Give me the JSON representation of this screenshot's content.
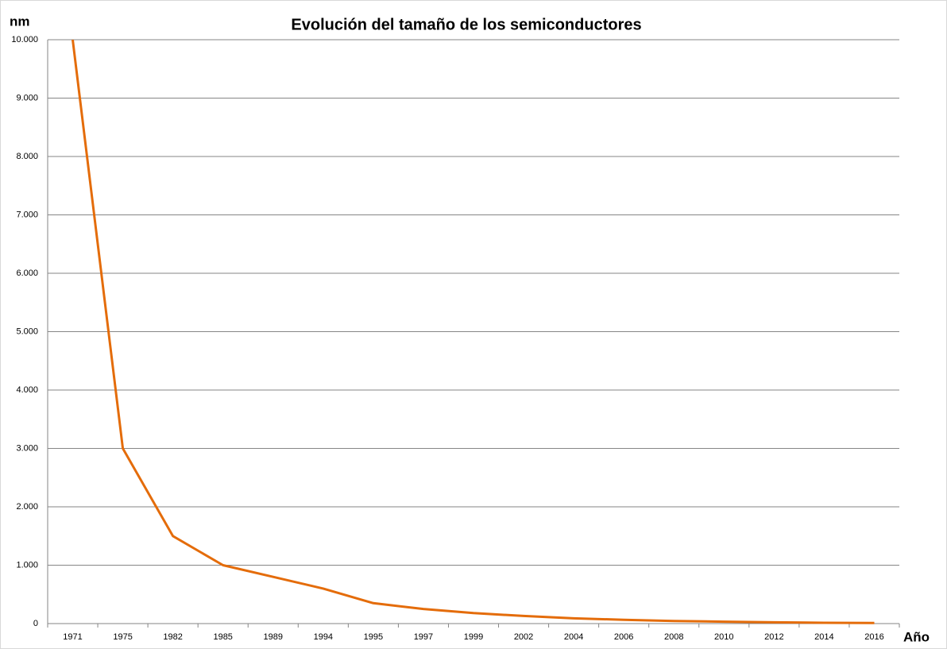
{
  "chart_data": {
    "type": "line",
    "title": "Evolución del tamaño de los semiconductores",
    "y_label": "nm",
    "x_label": "Año",
    "categories": [
      "1971",
      "1975",
      "1982",
      "1985",
      "1989",
      "1994",
      "1995",
      "1997",
      "1999",
      "2002",
      "2004",
      "2006",
      "2008",
      "2010",
      "2012",
      "2014",
      "2016"
    ],
    "series": [
      {
        "name": "nm",
        "color": "#e46c0a",
        "values": [
          10000,
          3000,
          1500,
          1000,
          800,
          600,
          350,
          250,
          180,
          130,
          90,
          65,
          45,
          32,
          22,
          14,
          10
        ]
      }
    ],
    "ylim": [
      0,
      10000
    ],
    "yticks": [
      0,
      {
        "value": 1000,
        "label": "1.000"
      },
      {
        "value": 2000,
        "label": "2.000"
      },
      {
        "value": 3000,
        "label": "3.000"
      },
      {
        "value": 4000,
        "label": "4.000"
      },
      {
        "value": 5000,
        "label": "5.000"
      },
      {
        "value": 6000,
        "label": "6.000"
      },
      {
        "value": 7000,
        "label": "7.000"
      },
      {
        "value": 8000,
        "label": "8.000"
      },
      {
        "value": 9000,
        "label": "9.000"
      },
      {
        "value": 10000,
        "label": "10.000"
      }
    ],
    "grid": true
  }
}
